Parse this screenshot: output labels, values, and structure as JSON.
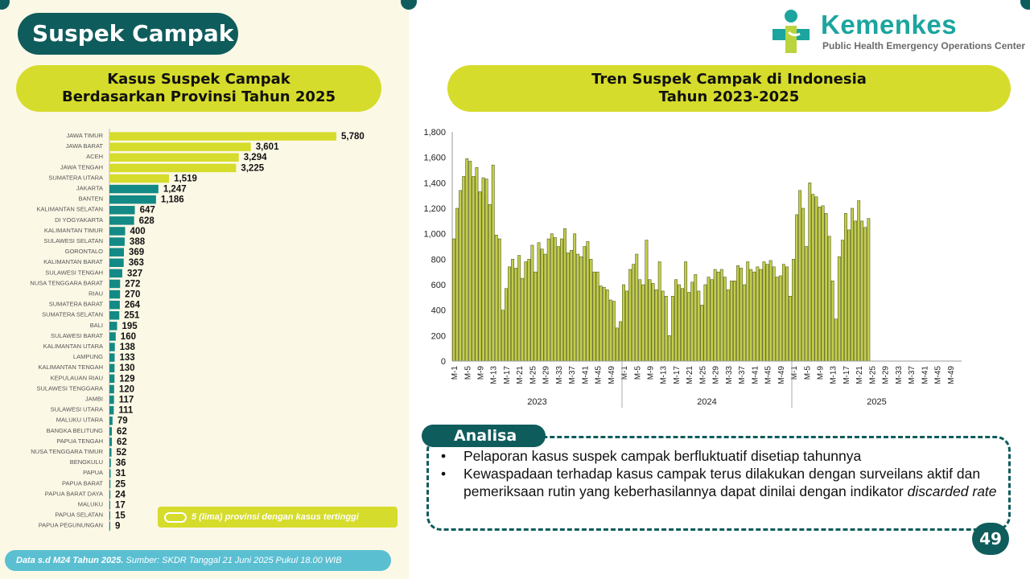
{
  "title": "Suspek Campak",
  "logo": {
    "name": "Kemenkes",
    "subtitle": "Public Health Emergency Operations Center"
  },
  "colors": {
    "dark_teal": "#0f5c5c",
    "lime": "#d6dc2b",
    "teal_bar": "#138a86",
    "line_bar": "#c3cd4a",
    "cyan": "#5bbfd2"
  },
  "left_chart": {
    "title_line1": "Kasus Suspek Campak",
    "title_line2": "Berdasarkan Provinsi Tahun 2025",
    "legend": "5 (lima) provinsi dengan kasus tertinggi"
  },
  "right_chart": {
    "title_line1": "Tren Suspek Campak di Indonesia",
    "title_line2": "Tahun 2023-2025"
  },
  "chart_data": [
    {
      "type": "bar",
      "orientation": "horizontal",
      "highlight_top": 5,
      "categories": [
        "JAWA TIMUR",
        "JAWA BARAT",
        "ACEH",
        "JAWA TENGAH",
        "SUMATERA UTARA",
        "JAKARTA",
        "BANTEN",
        "KALIMANTAN SELATAN",
        "DI YOGYAKARTA",
        "KALIMANTAN TIMUR",
        "SULAWESI SELATAN",
        "GORONTALO",
        "KALIMANTAN BARAT",
        "SULAWESI TENGAH",
        "NUSA TENGGARA BARAT",
        "RIAU",
        "SUMATERA BARAT",
        "SUMATERA SELATAN",
        "BALI",
        "SULAWESI BARAT",
        "KALIMANTAN UTARA",
        "LAMPUNG",
        "KALIMANTAN TENGAH",
        "KEPULAUAN RIAU",
        "SULAWESI TENGGARA",
        "JAMBI",
        "SULAWESI UTARA",
        "MALUKU UTARA",
        "BANGKA BELITUNG",
        "PAPUA TENGAH",
        "NUSA TENGGARA TIMUR",
        "BENGKULU",
        "PAPUA",
        "PAPUA BARAT",
        "PAPUA BARAT DAYA",
        "MALUKU",
        "PAPUA SELATAN",
        "PAPUA PEGUNUNGAN"
      ],
      "values": [
        5780,
        3601,
        3294,
        3225,
        1519,
        1247,
        1186,
        647,
        628,
        400,
        388,
        369,
        363,
        327,
        272,
        270,
        264,
        251,
        195,
        160,
        138,
        133,
        130,
        129,
        120,
        117,
        111,
        79,
        62,
        62,
        52,
        36,
        31,
        25,
        24,
        17,
        15,
        9
      ],
      "value_labels": [
        "5,780",
        "3,601",
        "3,294",
        "3,225",
        "1,519",
        "1,247",
        "1,186",
        "647",
        "628",
        "400",
        "388",
        "369",
        "363",
        "327",
        "272",
        "270",
        "264",
        "251",
        "195",
        "160",
        "138",
        "133",
        "130",
        "129",
        "120",
        "117",
        "111",
        "79",
        "62",
        "62",
        "52",
        "36",
        "31",
        "25",
        "24",
        "17",
        "15",
        "9"
      ]
    },
    {
      "type": "bar",
      "ylim": [
        0,
        1800
      ],
      "yticks": [
        "0",
        "200",
        "400",
        "600",
        "800",
        "1,000",
        "1,200",
        "1,400",
        "1,600",
        "1,800"
      ],
      "weeks_per_year": 52,
      "years": [
        "2023",
        "2024",
        "2025"
      ],
      "week_tick_labels": [
        "M-1",
        "M-5",
        "M-9",
        "M-13",
        "M-17",
        "M-21",
        "M-25",
        "M-29",
        "M-33",
        "M-37",
        "M-41",
        "M-45",
        "M-49"
      ],
      "series": [
        {
          "year": "2023",
          "values": [
            960,
            1200,
            1340,
            1450,
            1590,
            1570,
            1450,
            1520,
            1330,
            1440,
            1430,
            1230,
            1540,
            990,
            960,
            400,
            570,
            740,
            800,
            730,
            830,
            650,
            780,
            800,
            910,
            700,
            930,
            880,
            840,
            960,
            1000,
            970,
            900,
            960,
            1040,
            850,
            870,
            1000,
            840,
            820,
            900,
            940,
            800,
            700,
            700,
            590,
            580,
            560,
            480,
            470,
            260,
            310
          ]
        },
        {
          "year": "2024",
          "values": [
            600,
            550,
            720,
            760,
            840,
            640,
            600,
            950,
            640,
            610,
            560,
            780,
            550,
            510,
            200,
            510,
            640,
            600,
            570,
            780,
            540,
            620,
            680,
            550,
            440,
            600,
            660,
            640,
            720,
            700,
            720,
            660,
            560,
            630,
            630,
            750,
            730,
            600,
            780,
            720,
            700,
            740,
            720,
            780,
            760,
            790,
            740,
            660,
            670,
            760,
            740,
            510
          ]
        },
        {
          "year": "2025",
          "values": [
            800,
            1150,
            1340,
            1200,
            900,
            1400,
            1310,
            1290,
            1210,
            1220,
            1160,
            980,
            630,
            330,
            820,
            950,
            1160,
            1030,
            1200,
            1100,
            1260,
            1100,
            1050,
            1120
          ]
        }
      ]
    }
  ],
  "analisa": {
    "heading": "Analisa",
    "bullet1": "Pelaporan kasus suspek campak berfluktuatif disetiap tahunnya",
    "bullet2_main": "Kewaspadaan terhadap kasus campak terus dilakukan dengan surveilans aktif dan pemeriksaan rutin yang keberhasilannya dapat dinilai dengan indikator",
    "bullet2_italic": "discarded rate"
  },
  "footer": {
    "bold": "Data s.d M24 Tahun 2025.",
    "rest": "Sumber: SKDR Tanggal 21 Juni 2025 Pukul 18.00 WIB"
  },
  "page_number": "49"
}
